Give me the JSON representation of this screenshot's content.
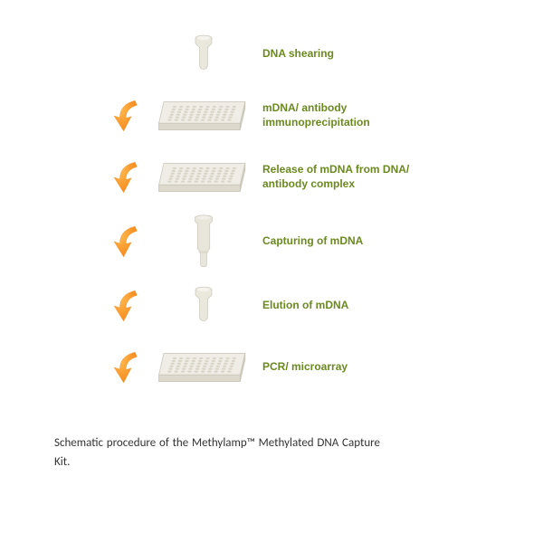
{
  "diagram": {
    "label_color": "#6a8a1f",
    "arrow_color": "#f68b1f",
    "arrow_highlight": "#ffb84d",
    "plate_fill": "#f0ede6",
    "plate_edge": "#c8c4b8",
    "tube_fill": "#eae7dd",
    "tube_edge": "#c4c0b4",
    "column_fill": "#e8e5da",
    "column_edge": "#c0bdb0",
    "steps": [
      {
        "id": "step1",
        "icon": "tube-small",
        "label": "DNA shearing",
        "arrow": false
      },
      {
        "id": "step2",
        "icon": "plate",
        "label": "mDNA/ antibody immunoprecipitation",
        "arrow": true
      },
      {
        "id": "step3",
        "icon": "plate",
        "label": "Release of mDNA from DNA/ antibody complex",
        "arrow": true
      },
      {
        "id": "step4",
        "icon": "column",
        "label": "Capturing of mDNA",
        "arrow": true
      },
      {
        "id": "step5",
        "icon": "tube-small",
        "label": "Elution of mDNA",
        "arrow": true
      },
      {
        "id": "step6",
        "icon": "plate",
        "label": "PCR/ microarray",
        "arrow": true
      }
    ]
  },
  "caption": "Schematic procedure of the Methylamp™ Methylated DNA Capture Kit."
}
